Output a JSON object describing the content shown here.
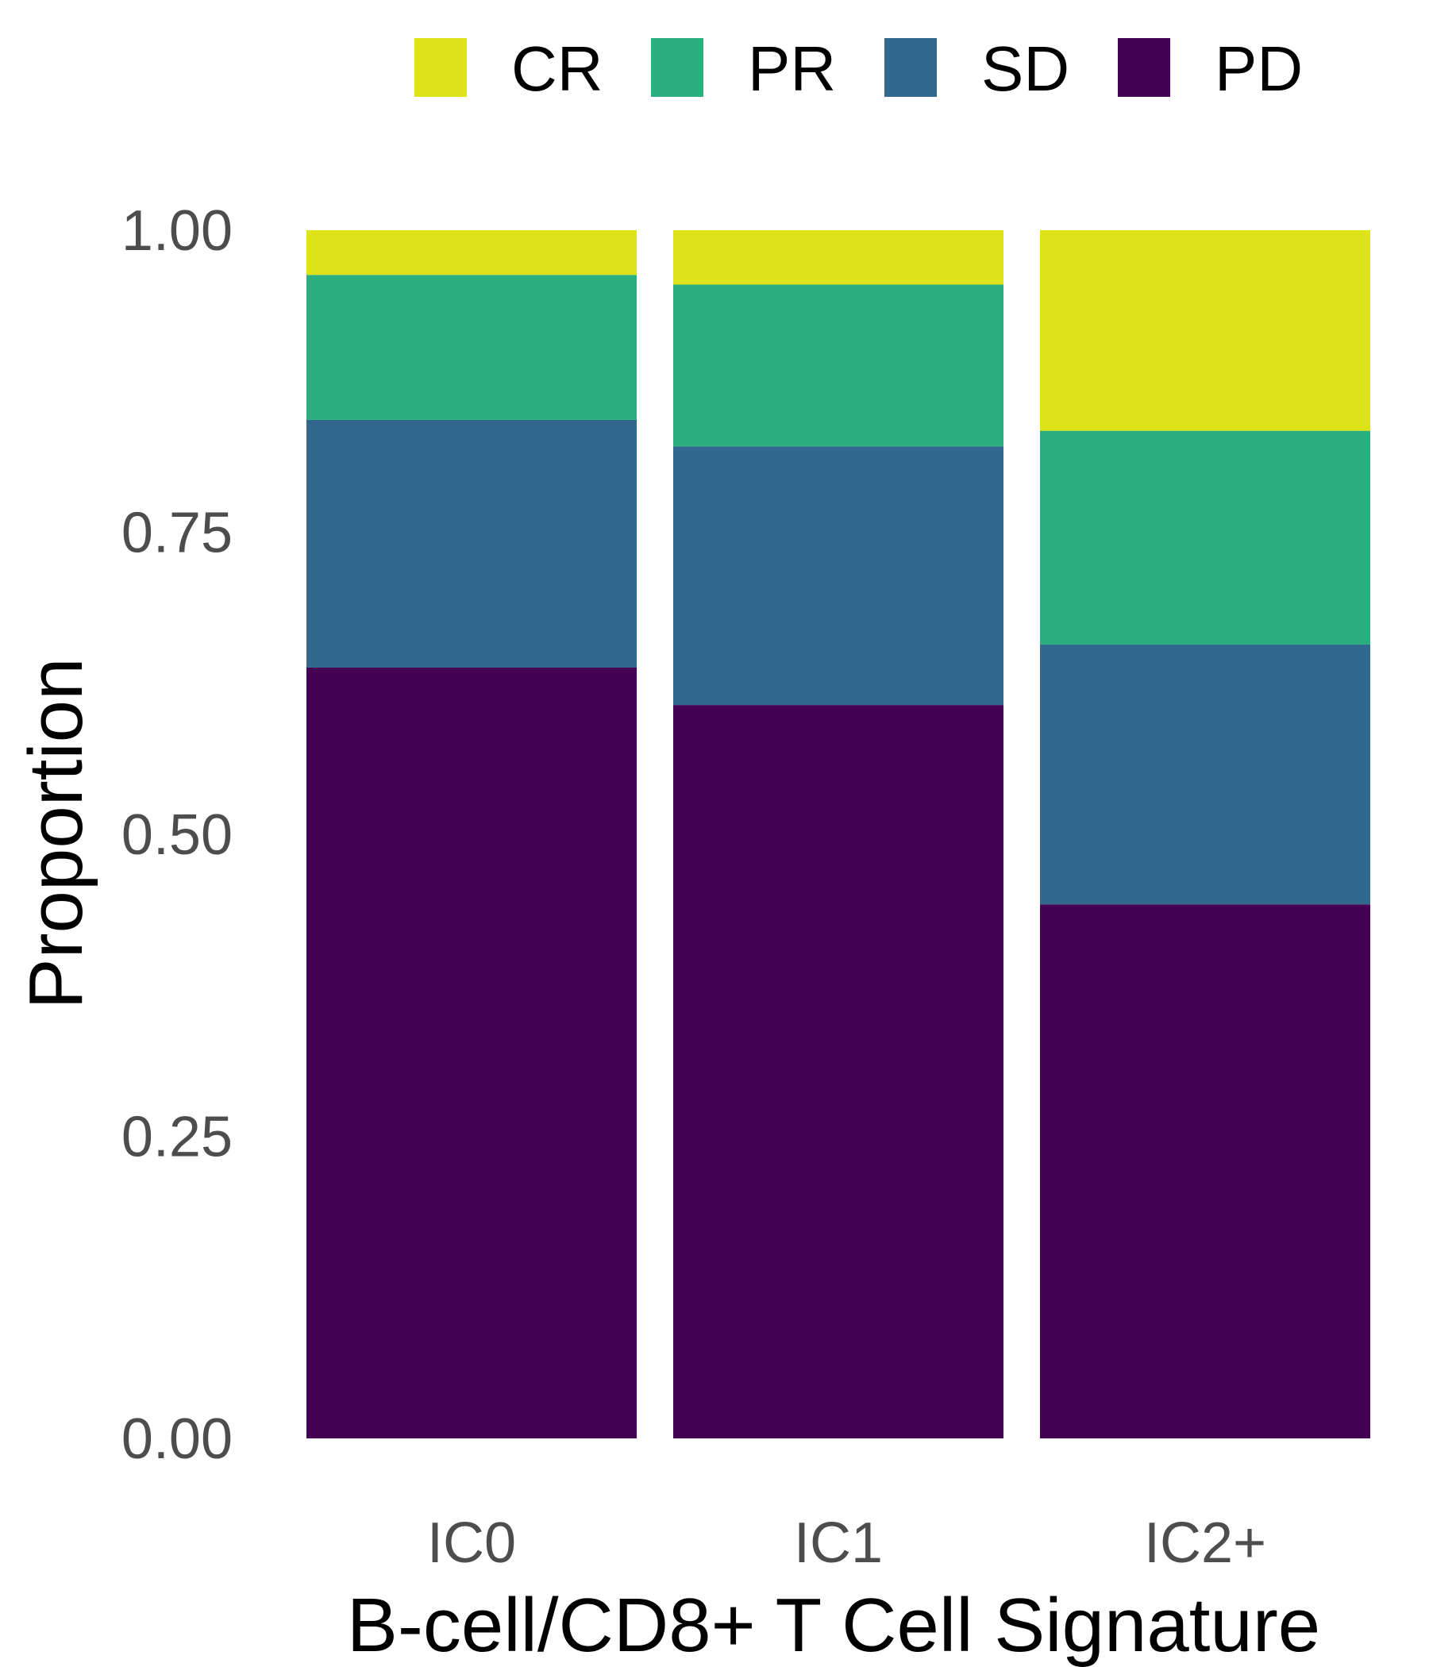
{
  "chart_data": {
    "type": "bar",
    "stacked": true,
    "title": "",
    "xlabel": "B-cell/CD8+ T Cell Signature",
    "ylabel": "Proportion",
    "ylim": [
      0,
      1
    ],
    "yticks": [
      "0.00",
      "0.25",
      "0.50",
      "0.75",
      "1.00"
    ],
    "ytick_values": [
      0,
      0.25,
      0.5,
      0.75,
      1.0
    ],
    "categories": [
      "IC0",
      "IC1",
      "IC2+"
    ],
    "series": [
      {
        "name": "PD",
        "color": "#440154",
        "values": [
          0.638,
          0.607,
          0.442
        ]
      },
      {
        "name": "SD",
        "color": "#31688E",
        "values": [
          0.205,
          0.214,
          0.215
        ]
      },
      {
        "name": "PR",
        "color": "#2BAF7F",
        "values": [
          0.12,
          0.134,
          0.177
        ]
      },
      {
        "name": "CR",
        "color": "#DDE318",
        "values": [
          0.037,
          0.045,
          0.166
        ]
      }
    ],
    "legend": {
      "position": "top",
      "order": [
        "CR",
        "PR",
        "SD",
        "PD"
      ]
    },
    "grid": false
  }
}
